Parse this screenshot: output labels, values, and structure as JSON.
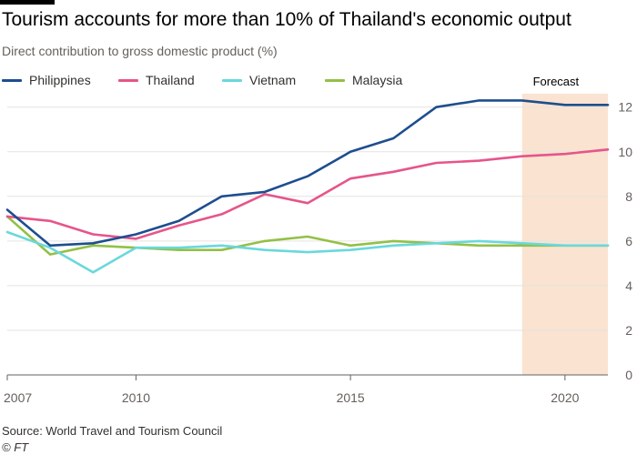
{
  "header": {
    "title": "Tourism accounts for more than 10% of Thailand's economic output",
    "subtitle": "Direct contribution to gross domestic product (%)"
  },
  "footer": {
    "source": "Source: World Travel and Tourism Council",
    "credit": "© FT"
  },
  "colors": {
    "Philippines": "#1d4e8f",
    "Thailand": "#e6558a",
    "Vietnam": "#6ad8dc",
    "Malaysia": "#93c046",
    "forecast_band": "#fae3d0",
    "grid": "#e6e3e0",
    "axis": "#66605c"
  },
  "chart_data": {
    "type": "line",
    "title": "Tourism accounts for more than 10% of Thailand's economic output",
    "subtitle": "Direct contribution to gross domestic product (%)",
    "x": [
      2007,
      2008,
      2009,
      2010,
      2011,
      2012,
      2013,
      2014,
      2015,
      2016,
      2017,
      2018,
      2019,
      2020,
      2021
    ],
    "xlim": [
      2007,
      2021
    ],
    "ylim": [
      0,
      12.6
    ],
    "x_ticks": [
      2007,
      2010,
      2015,
      2020
    ],
    "x_tick_labels": [
      "2007",
      "2010",
      "2015",
      "2020"
    ],
    "y_ticks": [
      0,
      2,
      4,
      6,
      8,
      10,
      12
    ],
    "y_tick_labels": [
      "0",
      "2",
      "4",
      "6",
      "8",
      "10",
      "12"
    ],
    "y_axis_side": "right",
    "grid": true,
    "legend_position": "top-left",
    "series": [
      {
        "name": "Philippines",
        "values": [
          7.4,
          5.8,
          5.9,
          6.3,
          6.9,
          8.0,
          8.2,
          8.9,
          10.0,
          10.6,
          12.0,
          12.3,
          12.3,
          12.1,
          12.1
        ]
      },
      {
        "name": "Thailand",
        "values": [
          7.1,
          6.9,
          6.3,
          6.1,
          6.7,
          7.2,
          8.1,
          7.7,
          8.8,
          9.1,
          9.5,
          9.6,
          9.8,
          9.9,
          10.1
        ]
      },
      {
        "name": "Vietnam",
        "values": [
          6.4,
          5.7,
          4.6,
          5.7,
          5.7,
          5.8,
          5.6,
          5.5,
          5.6,
          5.8,
          5.9,
          6.0,
          5.9,
          5.8,
          5.8
        ]
      },
      {
        "name": "Malaysia",
        "values": [
          7.1,
          5.4,
          5.8,
          5.7,
          5.6,
          5.6,
          6.0,
          6.2,
          5.8,
          6.0,
          5.9,
          5.8,
          5.8,
          5.8,
          5.8
        ]
      }
    ],
    "annotations": [
      {
        "label": "Forecast",
        "x_start": 2019,
        "x_end": 2021
      }
    ]
  }
}
